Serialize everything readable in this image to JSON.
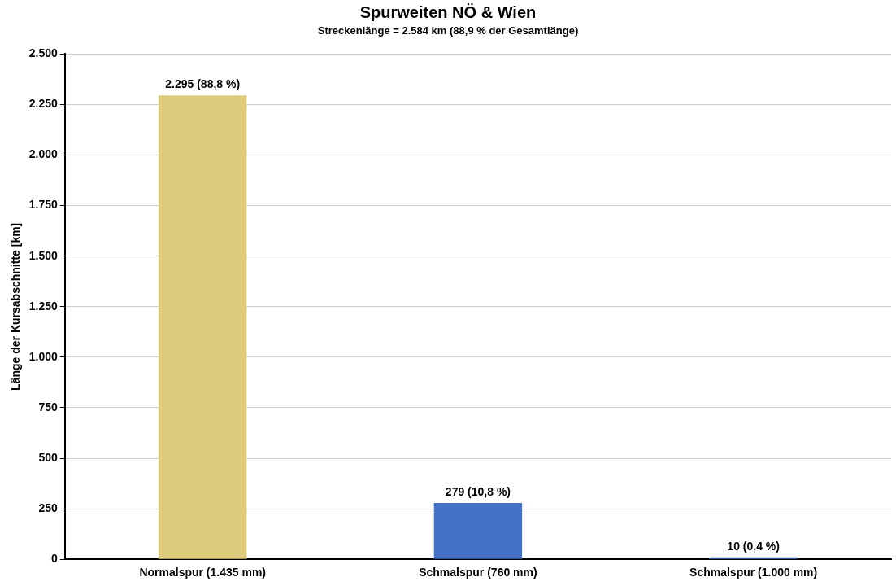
{
  "chart_data": {
    "type": "bar",
    "title": "Spurweiten NÖ & Wien",
    "subtitle": "Streckenlänge = 2.584 km (88,9 %  der Gesamtlänge)",
    "ylabel": "Länge der Kursabschnitte [km]",
    "categories": [
      "Normalspur (1.435 mm)",
      "Schmalspur (760 mm)",
      "Schmalspur (1.000 mm)"
    ],
    "values": [
      2295,
      279,
      10
    ],
    "colors": [
      "#dfcb7c",
      "#4472c4",
      "#4472c4"
    ],
    "value_labels": [
      "2.295 (88,8 %)",
      "279 (10,8 %)",
      "10 (0,4 %)"
    ],
    "ylim": [
      0,
      2500
    ],
    "yticks": [
      0,
      {
        "value": 250,
        "label": "250"
      },
      {
        "value": 500,
        "label": "500"
      },
      {
        "value": 750,
        "label": "750"
      },
      {
        "value": 1000,
        "label": "1.000"
      },
      {
        "value": 1250,
        "label": "1.250"
      },
      {
        "value": 1500,
        "label": "1.500"
      },
      {
        "value": 1750,
        "label": "1.750"
      },
      {
        "value": 2000,
        "label": "2.000"
      },
      {
        "value": 2250,
        "label": "2.250"
      },
      {
        "value": 2500,
        "label": "2.500"
      }
    ],
    "grid": "y",
    "legend": false
  }
}
